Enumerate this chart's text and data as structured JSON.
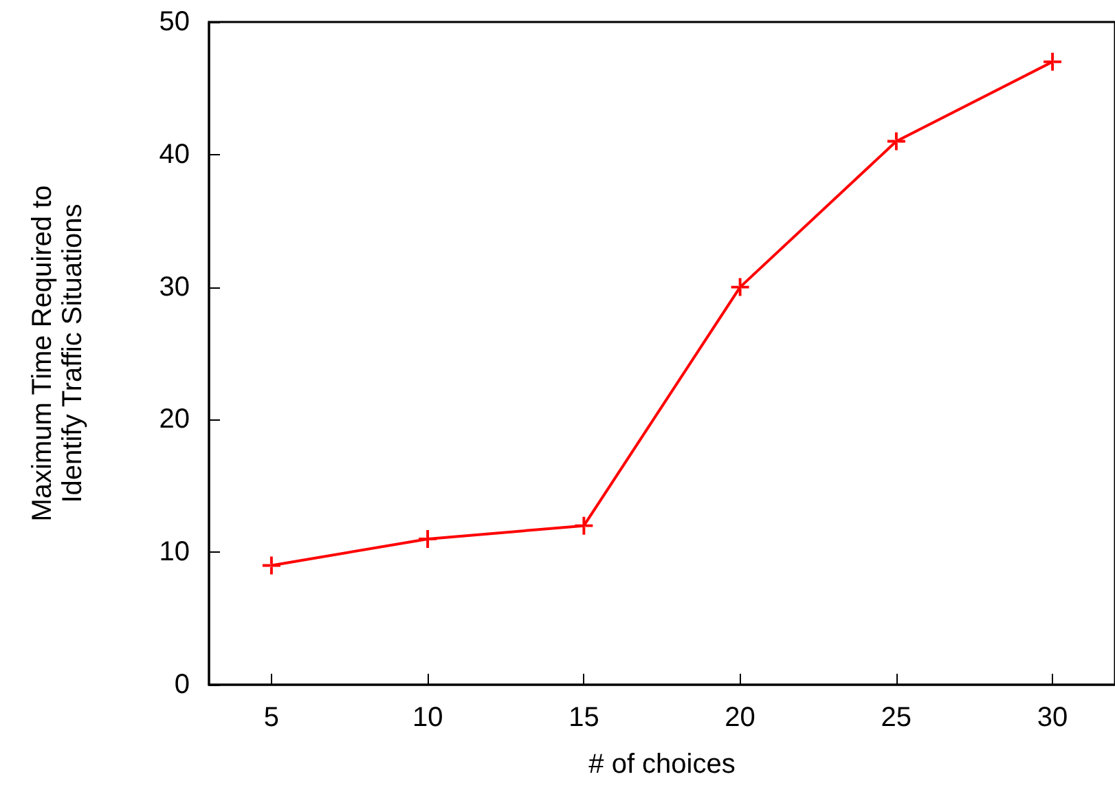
{
  "chart_data": {
    "type": "line",
    "xlabel": "# of choices",
    "ylabel": "Maximum Time Required to\nIdentify Traffic Situations",
    "x": [
      5,
      10,
      15,
      20,
      25,
      30
    ],
    "series": [
      {
        "color": "#ff0000",
        "values": [
          9,
          11,
          12,
          30,
          41,
          47
        ]
      }
    ],
    "xlim": [
      3,
      32
    ],
    "xticks": [
      5,
      10,
      15,
      20,
      25,
      30
    ],
    "ylim": [
      0,
      50
    ],
    "yticks": [
      0,
      10,
      20,
      30,
      40,
      50
    ],
    "marker": "cross",
    "line_style": "solid"
  }
}
